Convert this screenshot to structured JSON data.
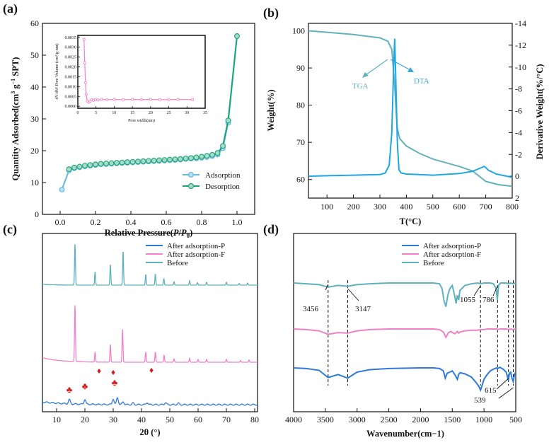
{
  "chart_data": [
    {
      "panel": "(a)",
      "type": "line",
      "xlabel": "Relative Pressure(P/P0)",
      "ylabel": "Quantity Adsorbed(cm3 g−1 SPT)",
      "xlim": [
        -0.1,
        1.1
      ],
      "ylim": [
        0,
        60
      ],
      "xticks": [
        0.0,
        0.2,
        0.4,
        0.6,
        0.8,
        1.0
      ],
      "yticks": [
        0,
        10,
        20,
        30,
        40,
        50,
        60
      ],
      "legend_position": "bottom-right",
      "colors": {
        "Adsorption": "#62b8dd",
        "Desorption": "#1aa37a"
      },
      "series": [
        {
          "name": "Adsorption",
          "x": [
            0.01,
            0.05,
            0.08,
            0.11,
            0.14,
            0.17,
            0.2,
            0.23,
            0.26,
            0.29,
            0.32,
            0.35,
            0.38,
            0.41,
            0.44,
            0.47,
            0.5,
            0.53,
            0.56,
            0.59,
            0.62,
            0.65,
            0.68,
            0.71,
            0.74,
            0.77,
            0.8,
            0.83,
            0.86,
            0.89,
            0.92,
            0.95,
            1.0
          ],
          "y": [
            7.8,
            13.8,
            14.5,
            14.8,
            15.1,
            15.3,
            15.5,
            15.7,
            15.8,
            15.9,
            16.0,
            16.1,
            16.2,
            16.3,
            16.4,
            16.5,
            16.6,
            16.7,
            16.8,
            16.9,
            17.0,
            17.1,
            17.2,
            17.4,
            17.5,
            17.6,
            17.8,
            18.0,
            18.3,
            18.8,
            20.8,
            28.8,
            56.0
          ]
        },
        {
          "name": "Desorption",
          "x": [
            1.0,
            0.95,
            0.92,
            0.89,
            0.86,
            0.83,
            0.8,
            0.77,
            0.74,
            0.71,
            0.68,
            0.65,
            0.62,
            0.59,
            0.56,
            0.53,
            0.5,
            0.47,
            0.44,
            0.41,
            0.38,
            0.35,
            0.32,
            0.29,
            0.26,
            0.23,
            0.2,
            0.17,
            0.14,
            0.11,
            0.08,
            0.05
          ],
          "y": [
            56.0,
            29.5,
            21.5,
            19.3,
            18.7,
            18.4,
            18.1,
            17.9,
            17.7,
            17.6,
            17.4,
            17.3,
            17.2,
            17.1,
            17.0,
            16.9,
            16.8,
            16.7,
            16.6,
            16.5,
            16.4,
            16.3,
            16.2,
            16.1,
            16.0,
            15.9,
            15.7,
            15.5,
            15.3,
            15.0,
            14.7,
            14.2
          ]
        }
      ],
      "inset": {
        "type": "line",
        "xlabel": "Pore width(nm)",
        "ylabel": "dV/dW Pore Volume (cm³/g·nm)",
        "xlim": [
          0,
          35
        ],
        "ylim": [
          -0.0001,
          0.0036
        ],
        "xticks": [
          0,
          5,
          10,
          15,
          20,
          25,
          30,
          35
        ],
        "yticks": [
          "0.0000",
          "0.0005",
          "0.0010",
          "0.0015",
          "0.0020",
          "0.0025",
          "0.0030",
          "0.0035"
        ],
        "color": "#ee82c8",
        "x": [
          1.7,
          1.9,
          2.1,
          2.3,
          2.6,
          3.0,
          3.4,
          3.8,
          4.3,
          4.8,
          5.5,
          6.5,
          8,
          10,
          12.5,
          15,
          17.5,
          20,
          22.5,
          25,
          27.5,
          31.5
        ],
        "y": [
          0.0034,
          0.0022,
          0.0012,
          0.0006,
          0.00027,
          0.0002,
          0.00025,
          0.00033,
          0.0003,
          0.00034,
          0.00032,
          0.00035,
          0.00034,
          0.00035,
          0.00034,
          0.00035,
          0.00034,
          0.00035,
          0.00034,
          0.00034,
          0.00035,
          0.00034
        ]
      }
    },
    {
      "panel": "(b)",
      "type": "line",
      "xlabel": "T(°C)",
      "ylabel": "Weight(%)",
      "ylabel_right": "Derivative Weight(%/°C)",
      "xlim": [
        30,
        800
      ],
      "ylim": [
        55,
        102
      ],
      "ylim_right": [
        2,
        -14
      ],
      "xticks": [
        100,
        200,
        300,
        400,
        500,
        600,
        700,
        800
      ],
      "yticks": [
        60,
        70,
        80,
        90,
        100
      ],
      "yticks_right": [
        2,
        0,
        -2,
        -4,
        -6,
        -8,
        -10,
        -12,
        -14
      ],
      "annotations": [
        "TGA",
        "DTA"
      ],
      "colors": {
        "TGA": "#62b1bd",
        "DTA": "#1da8e2"
      },
      "series": [
        {
          "name": "TGA",
          "axis": "left",
          "x": [
            30,
            100,
            200,
            300,
            330,
            345,
            355,
            365,
            375,
            400,
            450,
            500,
            550,
            600,
            650,
            700,
            750,
            800
          ],
          "y": [
            100,
            99.6,
            99.0,
            98.1,
            97.2,
            95.0,
            86.0,
            74.0,
            71.0,
            69.0,
            67.0,
            65.5,
            64.5,
            63.5,
            62.3,
            59.5,
            58.6,
            58.2
          ]
        },
        {
          "name": "DTA",
          "axis": "right",
          "x": [
            30,
            100,
            200,
            300,
            320,
            335,
            345,
            352,
            356,
            360,
            366,
            372,
            380,
            400,
            500,
            600,
            650,
            680,
            695,
            710,
            740,
            800
          ],
          "y": [
            0.0,
            -0.05,
            -0.1,
            -0.15,
            -0.3,
            -1.0,
            -4.0,
            -10.0,
            -12.6,
            -9.0,
            -3.0,
            -0.6,
            -0.3,
            -0.2,
            -0.1,
            -0.25,
            -0.45,
            -0.75,
            -0.9,
            -0.55,
            -0.2,
            0.1
          ]
        }
      ]
    },
    {
      "panel": "(c)",
      "type": "line",
      "xlabel": "2θ (°)",
      "xlim": [
        5,
        81
      ],
      "xticks": [
        10,
        20,
        30,
        40,
        50,
        60,
        70,
        80
      ],
      "legend_position": "top-right",
      "colors": {
        "After adsorption-P": "#2f7ad6",
        "After adsorption-F": "#ee82c8",
        "Before": "#5fb1bd"
      },
      "markers": {
        "club": [
          14.5,
          20,
          30.5
        ],
        "diamond": [
          25,
          30,
          43.5
        ]
      },
      "peaks": {
        "Before": [
          [
            16.5,
            100
          ],
          [
            23.6,
            33
          ],
          [
            29.0,
            50
          ],
          [
            33.5,
            83
          ],
          [
            41.5,
            26
          ],
          [
            44.9,
            27
          ],
          [
            47.9,
            16
          ],
          [
            51.5,
            8
          ],
          [
            57.0,
            11
          ],
          [
            59.8,
            6
          ],
          [
            63.0,
            7
          ],
          [
            70.0,
            7
          ],
          [
            74.5,
            4
          ],
          [
            77.5,
            5
          ]
        ],
        "After adsorption-F": [
          [
            16.5,
            100
          ],
          [
            23.6,
            18
          ],
          [
            29.0,
            31
          ],
          [
            33.3,
            58
          ],
          [
            41.5,
            18
          ],
          [
            44.9,
            18
          ],
          [
            48.0,
            12
          ],
          [
            51.5,
            6
          ],
          [
            57.0,
            7
          ],
          [
            60.0,
            5
          ],
          [
            63.0,
            5
          ],
          [
            70.0,
            5
          ],
          [
            75.0,
            3
          ],
          [
            78.0,
            4
          ]
        ],
        "After adsorption-P": [
          [
            14.5,
            6
          ],
          [
            20.0,
            7
          ],
          [
            30.0,
            8
          ],
          [
            31.5,
            10
          ],
          [
            33.5,
            4
          ],
          [
            37.0,
            2
          ],
          [
            42.0,
            3
          ],
          [
            48.5,
            3
          ],
          [
            53.0,
            2
          ]
        ]
      },
      "series": [
        {
          "name": "After adsorption-P"
        },
        {
          "name": "After adsorption-F"
        },
        {
          "name": "Before"
        }
      ]
    },
    {
      "panel": "(d)",
      "type": "line",
      "xlabel": "Wavenumber(cm−1)",
      "xlim": [
        4000,
        500
      ],
      "xticks": [
        4000,
        3500,
        3000,
        2500,
        2000,
        1500,
        1000,
        500
      ],
      "legend_position": "top-left",
      "annotations": [
        "3456",
        "3147",
        "1055",
        "786",
        "615",
        "539"
      ],
      "reference_lines": [
        3456,
        3147,
        1055,
        786,
        615,
        539
      ],
      "colors": {
        "After adsorption-P": "#2f7ad6",
        "After adsorption-F": "#ee82c8",
        "Before": "#5fb1bd"
      },
      "series": [
        {
          "name": "After adsorption-P",
          "x": [
            4000,
            3800,
            3600,
            3456,
            3300,
            3147,
            3000,
            2800,
            2500,
            2000,
            1800,
            1700,
            1640,
            1610,
            1580,
            1540,
            1500,
            1450,
            1420,
            1400,
            1380,
            1300,
            1200,
            1120,
            1080,
            1055,
            1030,
            1000,
            950,
            900,
            850,
            800,
            786,
            750,
            700,
            650,
            630,
            615,
            600,
            580,
            560,
            539,
            520,
            500
          ],
          "y": [
            0.77,
            0.76,
            0.73,
            0.61,
            0.66,
            0.6,
            0.7,
            0.74,
            0.76,
            0.77,
            0.77,
            0.76,
            0.72,
            0.6,
            0.68,
            0.7,
            0.72,
            0.64,
            0.58,
            0.66,
            0.69,
            0.67,
            0.62,
            0.52,
            0.46,
            0.4,
            0.48,
            0.58,
            0.66,
            0.72,
            0.75,
            0.77,
            0.76,
            0.78,
            0.75,
            0.7,
            0.62,
            0.56,
            0.68,
            0.7,
            0.6,
            0.54,
            0.66,
            0.7
          ]
        },
        {
          "name": "After adsorption-F",
          "x": [
            4000,
            3800,
            3600,
            3456,
            3300,
            3147,
            3000,
            2800,
            2500,
            2000,
            1800,
            1700,
            1640,
            1600,
            1560,
            1520,
            1500,
            1460,
            1420,
            1400,
            1380,
            1300,
            1200,
            1100,
            1055,
            1000,
            950,
            900,
            850,
            800,
            786,
            750,
            700,
            650,
            615,
            580,
            539,
            500
          ],
          "y": [
            0.77,
            0.76,
            0.74,
            0.68,
            0.71,
            0.7,
            0.74,
            0.76,
            0.77,
            0.77,
            0.77,
            0.76,
            0.72,
            0.63,
            0.71,
            0.73,
            0.71,
            0.69,
            0.73,
            0.7,
            0.72,
            0.74,
            0.75,
            0.75,
            0.76,
            0.76,
            0.77,
            0.77,
            0.77,
            0.77,
            0.76,
            0.77,
            0.77,
            0.77,
            0.76,
            0.77,
            0.76,
            0.77
          ]
        },
        {
          "name": "Before",
          "x": [
            4000,
            3800,
            3600,
            3456,
            3300,
            3147,
            3000,
            2800,
            2500,
            2000,
            1800,
            1700,
            1660,
            1630,
            1600,
            1570,
            1540,
            1500,
            1470,
            1440,
            1420,
            1400,
            1380,
            1300,
            1200,
            1100,
            1055,
            1000,
            950,
            900,
            850,
            810,
            790,
            786,
            770,
            740,
            700,
            650,
            615,
            580,
            539,
            500
          ],
          "y": [
            0.77,
            0.76,
            0.75,
            0.72,
            0.74,
            0.73,
            0.75,
            0.76,
            0.77,
            0.77,
            0.77,
            0.76,
            0.7,
            0.55,
            0.48,
            0.62,
            0.7,
            0.74,
            0.64,
            0.52,
            0.62,
            0.56,
            0.68,
            0.74,
            0.76,
            0.77,
            0.76,
            0.77,
            0.77,
            0.77,
            0.76,
            0.7,
            0.56,
            0.6,
            0.74,
            0.77,
            0.77,
            0.77,
            0.76,
            0.77,
            0.76,
            0.77
          ]
        }
      ]
    }
  ]
}
